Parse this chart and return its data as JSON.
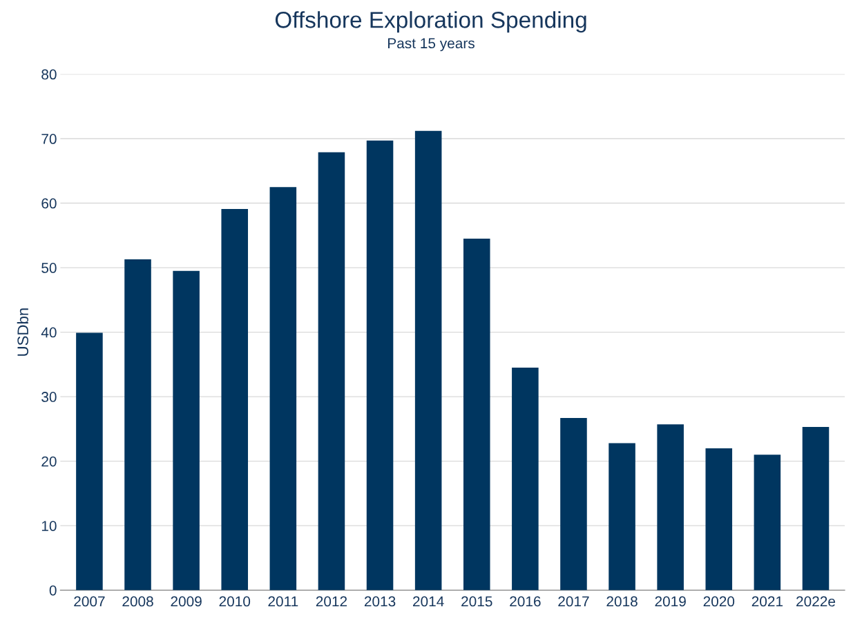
{
  "chart_data": {
    "type": "bar",
    "title": "Offshore Exploration Spending",
    "subtitle": "Past 15 years",
    "ylabel": "USDbn",
    "categories": [
      "2007",
      "2008",
      "2009",
      "2010",
      "2011",
      "2012",
      "2013",
      "2014",
      "2015",
      "2016",
      "2017",
      "2018",
      "2019",
      "2020",
      "2021",
      "2022e"
    ],
    "values": [
      39.9,
      51.3,
      49.5,
      59.1,
      62.5,
      67.9,
      69.7,
      71.2,
      54.5,
      34.5,
      26.7,
      22.8,
      25.7,
      22.0,
      21.0,
      25.3
    ],
    "color": "#003660",
    "ylim": [
      0,
      80
    ],
    "yticks": [
      0,
      10,
      20,
      30,
      40,
      50,
      60,
      70,
      80
    ],
    "grid": "y",
    "legend": false
  }
}
